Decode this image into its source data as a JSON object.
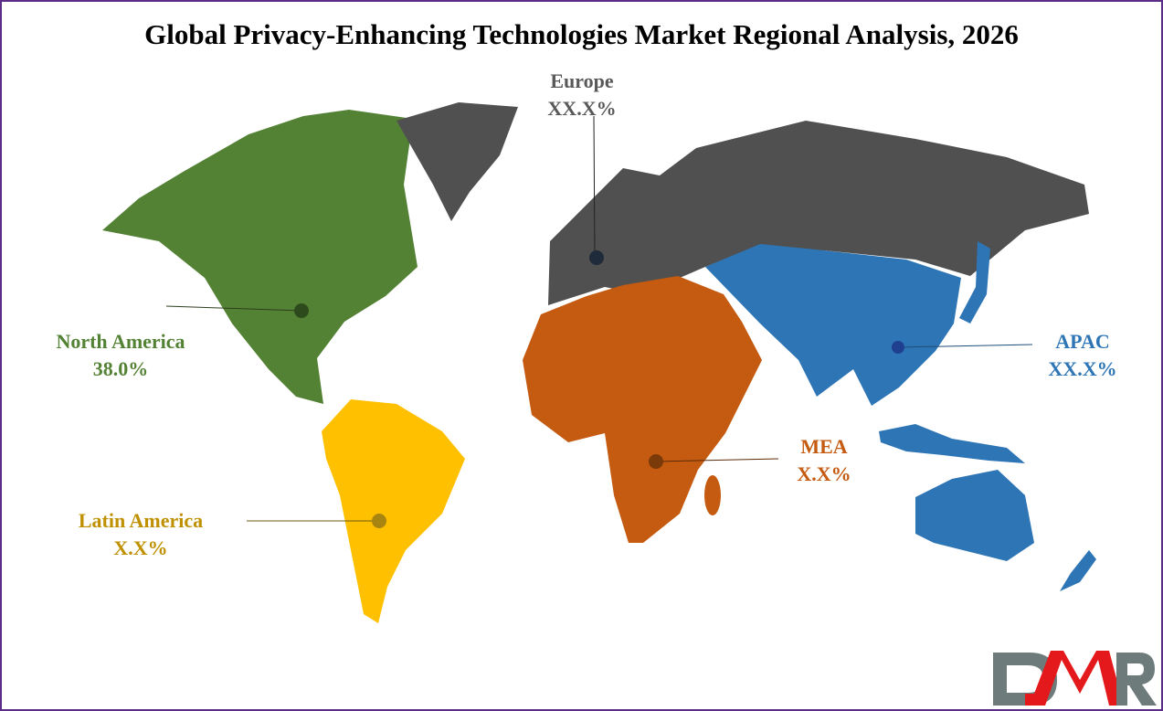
{
  "title": "Global Privacy-Enhancing Technologies Market Regional Analysis, 2026",
  "regions": [
    {
      "name": "North America",
      "value": "38.0%",
      "color": "#548235",
      "label_color": "#548235"
    },
    {
      "name": "Latin America",
      "value": "X.X%",
      "color": "#ffc000",
      "label_color": "#bf9000"
    },
    {
      "name": "Europe",
      "value": "XX.X%",
      "color": "#505050",
      "label_color": "#595959"
    },
    {
      "name": "MEA",
      "value": "X.X%",
      "color": "#c55a11",
      "label_color": "#c55a11"
    },
    {
      "name": "APAC",
      "value": "XX.X%",
      "color": "#2e75b6",
      "label_color": "#2e75b6"
    }
  ],
  "logo": {
    "text": "DMR",
    "colors": [
      "#6d7b7b",
      "#e3191b"
    ]
  },
  "border_color": "#5b2d86"
}
